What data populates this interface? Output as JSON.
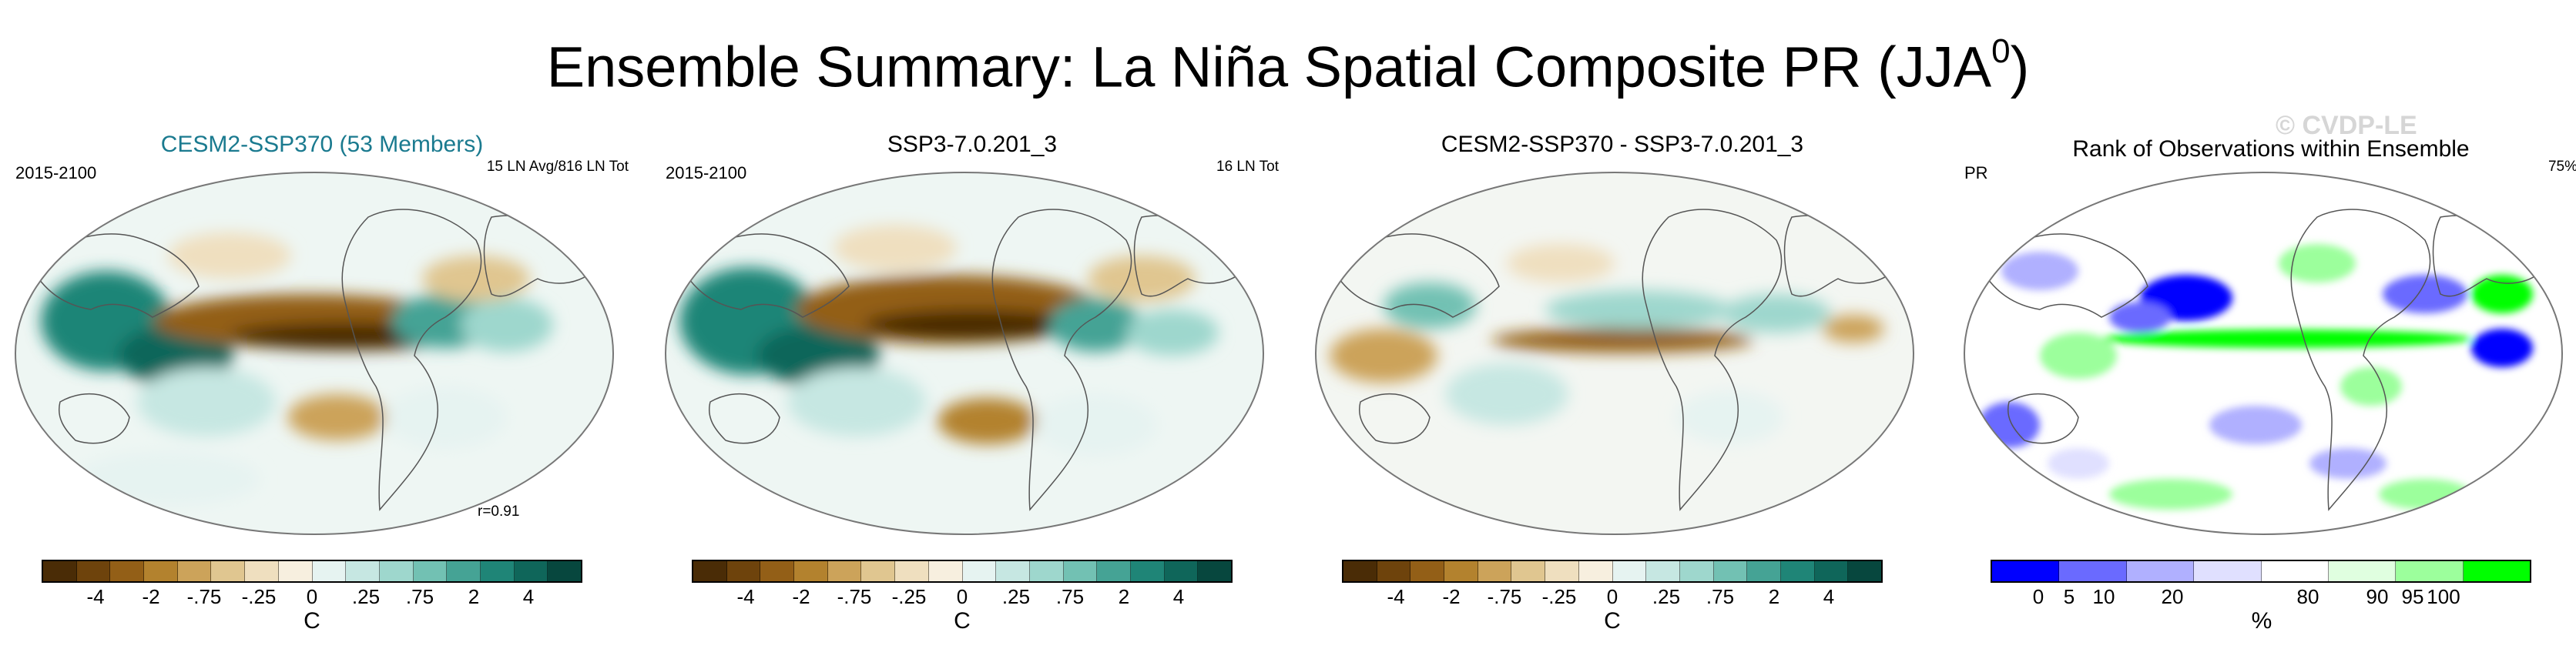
{
  "title": {
    "main": "Ensemble Summary: La Niña Spatial Composite PR (JJA",
    "superscript": "0",
    "close": ")"
  },
  "watermark": "© CVDP-LE",
  "panels": [
    {
      "title": "CESM2-SSP370 (53 Members)",
      "left_label": "2015-2100",
      "right_label": "15 LN Avg/816 LN Tot",
      "corr_label": "r=0.91"
    },
    {
      "title": "SSP3-7.0.201_3",
      "left_label": "2015-2100",
      "right_label": "16 LN Tot"
    },
    {
      "title": "CESM2-SSP370 - SSP3-7.0.201_3"
    },
    {
      "title": "Rank of Observations within Ensemble",
      "left_label": "PR",
      "right_label": "75%"
    }
  ],
  "colorbars": {
    "diverging": {
      "colors": [
        "#4a2c06",
        "#6e430c",
        "#935f17",
        "#b3822e",
        "#cca35a",
        "#e0c690",
        "#efdfbf",
        "#f7efdf",
        "#e6f3f1",
        "#c6e7e2",
        "#9ed7cd",
        "#72c1b3",
        "#45a395",
        "#1f8577",
        "#0f665a",
        "#07473e"
      ],
      "ticks": [
        "-4",
        "-2",
        "-.75",
        "-.25",
        "0",
        ".25",
        ".75",
        "2",
        "4"
      ],
      "unit": "C"
    },
    "rank": {
      "colors": [
        "#0000ff",
        "#6a6aff",
        "#b0b0ff",
        "#e0e0ff",
        "#ffffff",
        "#e0ffe0",
        "#9cff9c",
        "#00ff00"
      ],
      "ticks": [
        "0",
        "5",
        "10",
        "20",
        "80",
        "90",
        "95",
        "100"
      ],
      "unit": "%"
    }
  }
}
